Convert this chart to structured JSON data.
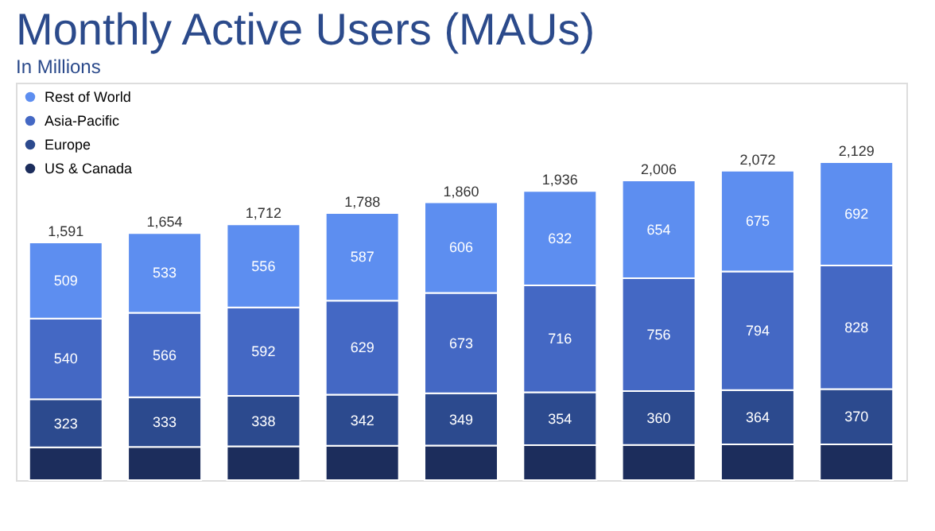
{
  "chart_data": {
    "type": "bar",
    "title": "Monthly Active Users (MAUs)",
    "subtitle": "In Millions",
    "stacked": true,
    "legend": "top left",
    "tick_labels": false,
    "grid": false,
    "categories": [
      null,
      null,
      null,
      null,
      null,
      null,
      null,
      null,
      null
    ],
    "series": [
      {
        "name": "US & Canada",
        "color": "#1c2d5c",
        "values": [
          219,
          222,
          226,
          230,
          232,
          234,
          236,
          239,
          239
        ],
        "value_labels": [
          null,
          null,
          null,
          null,
          null,
          null,
          null,
          null,
          null
        ]
      },
      {
        "name": "Europe",
        "color": "#2c4a8e",
        "values": [
          323,
          333,
          338,
          342,
          349,
          354,
          360,
          364,
          370
        ],
        "value_labels": [
          "323",
          "333",
          "338",
          "342",
          "349",
          "354",
          "360",
          "364",
          "370"
        ]
      },
      {
        "name": "Asia-Pacific",
        "color": "#4468c4",
        "values": [
          540,
          566,
          592,
          629,
          673,
          716,
          756,
          794,
          828
        ],
        "value_labels": [
          "540",
          "566",
          "592",
          "629",
          "673",
          "716",
          "756",
          "794",
          "828"
        ]
      },
      {
        "name": "Rest of World",
        "color": "#5d8ef0",
        "values": [
          509,
          533,
          556,
          587,
          606,
          632,
          654,
          675,
          692
        ],
        "value_labels": [
          "509",
          "533",
          "556",
          "587",
          "606",
          "632",
          "654",
          "675",
          "692"
        ]
      }
    ],
    "totals": [
      "1,591",
      "1,654",
      "1,712",
      "1,788",
      "1,860",
      "1,936",
      "2,006",
      "2,072",
      "2,129"
    ]
  }
}
